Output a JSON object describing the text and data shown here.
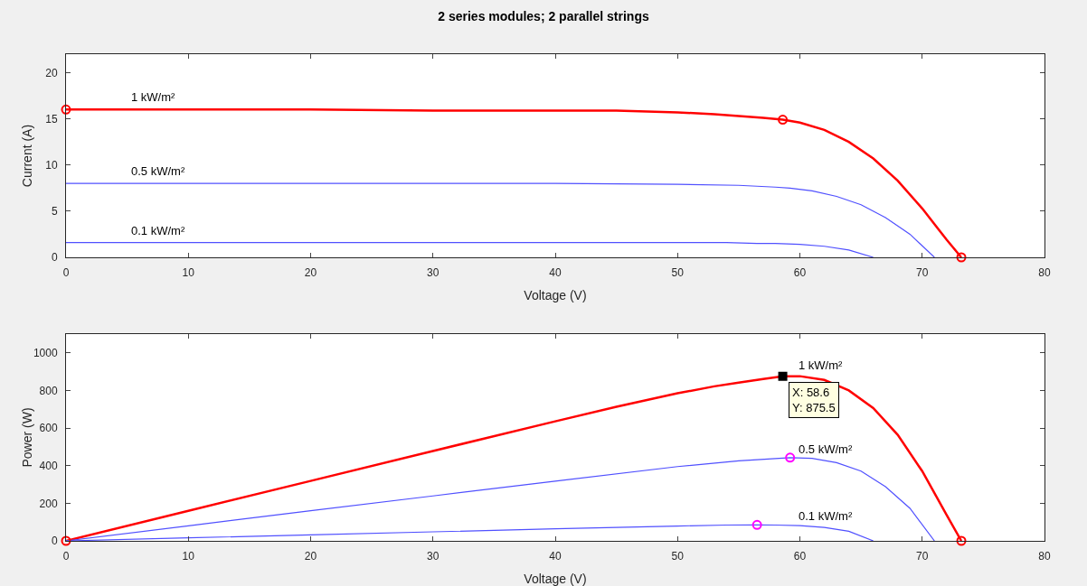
{
  "chart_data": [
    {
      "type": "line",
      "title": "2 series modules; 2 parallel strings",
      "xlabel": "Voltage (V)",
      "ylabel": "Current (A)",
      "xlim": [
        0,
        80
      ],
      "xticks": [
        0,
        10,
        20,
        30,
        40,
        50,
        60,
        70,
        80
      ],
      "ylim": [
        0,
        22
      ],
      "yticks": [
        0,
        5,
        10,
        15,
        20
      ],
      "grid": false,
      "series": [
        {
          "color": "#ff0000",
          "x": [
            0,
            10,
            20,
            30,
            40,
            45,
            50,
            53,
            55,
            57,
            58.6,
            60,
            62,
            64,
            66,
            68,
            70,
            72,
            73.2
          ],
          "values": [
            16,
            16,
            16,
            15.9,
            15.9,
            15.9,
            15.7,
            15.5,
            15.3,
            15.1,
            14.9,
            14.6,
            13.8,
            12.5,
            10.7,
            8.3,
            5.3,
            1.9,
            0
          ],
          "marker": "none"
        },
        {
          "color": "#5050ff",
          "x": [
            0,
            10,
            20,
            30,
            40,
            50,
            55,
            58,
            59.2,
            61,
            63,
            65,
            67,
            69,
            71
          ],
          "values": [
            8,
            8,
            8,
            8,
            8,
            7.9,
            7.8,
            7.6,
            7.5,
            7.2,
            6.6,
            5.7,
            4.3,
            2.5,
            0
          ],
          "marker": "none"
        },
        {
          "color": "#5050ff",
          "x": [
            0,
            10,
            20,
            30,
            40,
            50,
            54,
            56.5,
            58,
            60,
            62,
            64,
            66
          ],
          "values": [
            1.6,
            1.6,
            1.6,
            1.6,
            1.6,
            1.6,
            1.6,
            1.5,
            1.5,
            1.4,
            1.2,
            0.8,
            0
          ],
          "marker": "none"
        },
        {
          "type": "scatter",
          "color": "#ff0000",
          "x": [
            0,
            58.6,
            73.2
          ],
          "values": [
            16,
            14.9,
            0
          ],
          "marker": "circle"
        }
      ],
      "annotations": [
        {
          "text": "1 kW/m²",
          "x": 5,
          "y": 16.2
        },
        {
          "text": "0.5 kW/m²",
          "x": 5,
          "y": 8.2
        },
        {
          "text": "0.1 kW/m²",
          "x": 5,
          "y": 1.8
        }
      ]
    },
    {
      "type": "line",
      "xlabel": "Voltage (V)",
      "ylabel": "Power (W)",
      "xlim": [
        0,
        80
      ],
      "xticks": [
        0,
        10,
        20,
        30,
        40,
        50,
        60,
        70,
        80
      ],
      "ylim": [
        0,
        1100
      ],
      "yticks": [
        0,
        200,
        400,
        600,
        800,
        1000
      ],
      "grid": false,
      "series": [
        {
          "color": "#ff0000",
          "x": [
            0,
            10,
            20,
            30,
            40,
            45,
            50,
            53,
            55,
            57,
            58.6,
            60,
            62,
            64,
            66,
            68,
            70,
            72,
            73.2
          ],
          "values": [
            0,
            160,
            319,
            478,
            636,
            713,
            785,
            822,
            842,
            861,
            875.5,
            876,
            856,
            800,
            706,
            564,
            371,
            137,
            0
          ],
          "marker": "none"
        },
        {
          "color": "#5050ff",
          "x": [
            0,
            10,
            20,
            30,
            40,
            50,
            55,
            58,
            59.2,
            61,
            63,
            65,
            67,
            69,
            71
          ],
          "values": [
            0,
            80,
            160,
            239,
            318,
            395,
            426,
            438,
            443,
            439,
            416,
            371,
            288,
            173,
            0
          ],
          "marker": "none"
        },
        {
          "color": "#5050ff",
          "x": [
            0,
            10,
            20,
            30,
            40,
            50,
            54,
            56.5,
            58,
            60,
            62,
            64,
            66
          ],
          "values": [
            0,
            16,
            32,
            48,
            64,
            79,
            84,
            85,
            84,
            81,
            71,
            51,
            0
          ],
          "marker": "none"
        },
        {
          "type": "scatter",
          "color": "#ff0000",
          "x": [
            0,
            73.2
          ],
          "values": [
            0,
            0
          ],
          "marker": "circle"
        },
        {
          "type": "scatter",
          "color": "#ff00ff",
          "x": [
            59.2,
            56.5
          ],
          "values": [
            443,
            85
          ],
          "marker": "circle"
        },
        {
          "type": "scatter",
          "color": "#000000",
          "x": [
            58.6
          ],
          "values": [
            875.5
          ],
          "marker": "square"
        }
      ],
      "annotations": [
        {
          "text": "1 kW/m²",
          "x": 59.6,
          "y": 880
        },
        {
          "text": "0.5 kW/m²",
          "x": 59.6,
          "y": 430
        },
        {
          "text": "0.1 kW/m²",
          "x": 59.6,
          "y": 75
        },
        {
          "text": "X: 58.6\nY: 875.5",
          "x": 58.6,
          "y": 875.5
        }
      ]
    }
  ]
}
